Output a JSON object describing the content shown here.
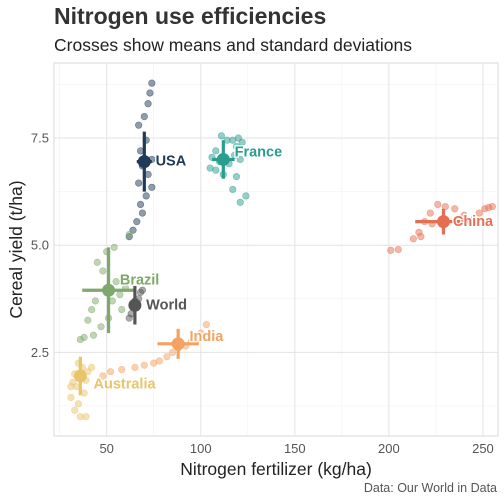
{
  "title": "Nitrogen use efficiencies",
  "subtitle": "Crosses show means and standard deviations",
  "caption": "Data: Our World in Data",
  "chart_data": {
    "type": "scatter",
    "title": "Nitrogen use efficiencies",
    "subtitle": "Crosses show means and standard deviations",
    "xlabel": "Nitrogen fertilizer (kg/ha)",
    "ylabel": "Cereal yield (t/ha)",
    "xlim": [
      22,
      258
    ],
    "ylim": [
      0.55,
      9.25
    ],
    "xticks": [
      50,
      100,
      150,
      200,
      250
    ],
    "yticks": [
      2.5,
      5.0,
      7.5
    ],
    "ytick_labels": [
      "2.5",
      "5.0",
      "7.5"
    ],
    "grid": true,
    "legend": "none",
    "series": [
      {
        "name": "USA",
        "color": "#1f3b57",
        "mean": [
          70,
          6.95
        ],
        "sd": [
          4,
          0.7
        ],
        "points": [
          [
            74,
            8.78
          ],
          [
            73,
            8.55
          ],
          [
            72,
            8.3
          ],
          [
            70,
            8.0
          ],
          [
            67,
            7.8
          ],
          [
            71,
            7.45
          ],
          [
            68,
            7.2
          ],
          [
            74,
            7.0
          ],
          [
            69,
            6.85
          ],
          [
            72,
            6.65
          ],
          [
            67,
            6.45
          ],
          [
            74,
            6.35
          ],
          [
            71,
            6.15
          ],
          [
            68,
            5.95
          ],
          [
            69,
            5.75
          ],
          [
            66,
            5.55
          ],
          [
            64,
            5.35
          ],
          [
            62,
            5.2
          ]
        ]
      },
      {
        "name": "France",
        "color": "#2a9d8f",
        "mean": [
          112,
          7.0
        ],
        "sd": [
          6,
          0.45
        ],
        "points": [
          [
            111,
            7.55
          ],
          [
            114,
            7.45
          ],
          [
            117,
            7.45
          ],
          [
            120,
            7.5
          ],
          [
            122,
            7.4
          ],
          [
            119,
            7.3
          ],
          [
            108,
            7.2
          ],
          [
            106,
            7.05
          ],
          [
            110,
            6.95
          ],
          [
            115,
            6.9
          ],
          [
            118,
            7.1
          ],
          [
            121,
            7.0
          ],
          [
            108,
            6.75
          ],
          [
            112,
            6.65
          ],
          [
            119,
            6.6
          ],
          [
            117,
            6.3
          ],
          [
            121,
            6.0
          ],
          [
            124,
            6.15
          ],
          [
            105,
            6.8
          ]
        ]
      },
      {
        "name": "China",
        "color": "#e76f51",
        "mean": [
          229,
          5.55
        ],
        "sd": [
          15,
          0.3
        ],
        "points": [
          [
            201,
            4.88
          ],
          [
            205,
            4.9
          ],
          [
            213,
            5.15
          ],
          [
            216,
            5.3
          ],
          [
            219,
            5.55
          ],
          [
            222,
            5.75
          ],
          [
            226,
            5.95
          ],
          [
            230,
            5.9
          ],
          [
            235,
            5.85
          ],
          [
            240,
            5.7
          ],
          [
            245,
            5.6
          ],
          [
            248,
            5.75
          ],
          [
            251,
            5.85
          ],
          [
            253,
            5.88
          ],
          [
            255,
            5.9
          ],
          [
            223,
            5.5
          ],
          [
            217,
            5.2
          ]
        ]
      },
      {
        "name": "Brazil",
        "color": "#7fa86c",
        "mean": [
          51,
          3.95
        ],
        "sd": [
          14,
          1.0
        ],
        "points": [
          [
            62,
            5.25
          ],
          [
            54,
            4.95
          ],
          [
            50,
            4.85
          ],
          [
            45,
            4.6
          ],
          [
            48,
            4.4
          ],
          [
            55,
            4.15
          ],
          [
            60,
            4.0
          ],
          [
            57,
            3.85
          ],
          [
            53,
            3.7
          ],
          [
            58,
            3.5
          ],
          [
            51,
            3.3
          ],
          [
            47,
            3.1
          ],
          [
            43,
            2.9
          ],
          [
            38,
            2.85
          ],
          [
            42,
            3.5
          ],
          [
            36,
            2.8
          ],
          [
            40,
            3.25
          ],
          [
            44,
            3.7
          ]
        ]
      },
      {
        "name": "World",
        "color": "#555555",
        "mean": [
          65,
          3.6
        ],
        "sd": [
          3,
          0.45
        ],
        "points": [
          [
            62,
            3.3
          ],
          [
            63,
            3.4
          ],
          [
            64,
            3.55
          ],
          [
            66,
            3.6
          ],
          [
            67,
            3.75
          ],
          [
            68,
            3.9
          ],
          [
            65,
            3.7
          ],
          [
            69,
            3.95
          ]
        ]
      },
      {
        "name": "India",
        "color": "#f4a261",
        "mean": [
          88,
          2.7
        ],
        "sd": [
          11,
          0.35
        ],
        "points": [
          [
            103,
            3.15
          ],
          [
            100,
            2.95
          ],
          [
            98,
            2.8
          ],
          [
            95,
            2.75
          ],
          [
            92,
            2.65
          ],
          [
            88,
            2.6
          ],
          [
            85,
            2.5
          ],
          [
            82,
            2.4
          ],
          [
            78,
            2.3
          ],
          [
            75,
            2.25
          ],
          [
            70,
            2.2
          ],
          [
            65,
            2.15
          ],
          [
            58,
            2.1
          ],
          [
            52,
            2.05
          ],
          [
            48,
            1.95
          ]
        ]
      },
      {
        "name": "Australia",
        "color": "#e9c46a",
        "mean": [
          36,
          1.95
        ],
        "sd": [
          3,
          0.45
        ],
        "points": [
          [
            35,
            2.25
          ],
          [
            37,
            2.15
          ],
          [
            40,
            2.05
          ],
          [
            33,
            2.0
          ],
          [
            36,
            1.95
          ],
          [
            39,
            1.85
          ],
          [
            32,
            1.8
          ],
          [
            34,
            1.7
          ],
          [
            38,
            1.55
          ],
          [
            31,
            1.45
          ],
          [
            35,
            1.3
          ],
          [
            33,
            1.15
          ],
          [
            36,
            1.0
          ],
          [
            39,
            1.0
          ],
          [
            42,
            2.15
          ],
          [
            31,
            1.7
          ]
        ]
      }
    ],
    "annotations": [
      {
        "label": "USA",
        "x": 76,
        "y": 6.98,
        "color": "#1f3b57"
      },
      {
        "label": "France",
        "x": 118,
        "y": 7.18,
        "color": "#2a9d8f"
      },
      {
        "label": "China",
        "x": 234,
        "y": 5.57,
        "color": "#e76f51"
      },
      {
        "label": "Brazil",
        "x": 57,
        "y": 4.2,
        "color": "#7fa86c"
      },
      {
        "label": "World",
        "x": 71,
        "y": 3.62,
        "color": "#555555"
      },
      {
        "label": "India",
        "x": 94,
        "y": 2.88,
        "color": "#f4a261"
      },
      {
        "label": "Australia",
        "x": 43,
        "y": 1.78,
        "color": "#e9c46a"
      }
    ]
  }
}
